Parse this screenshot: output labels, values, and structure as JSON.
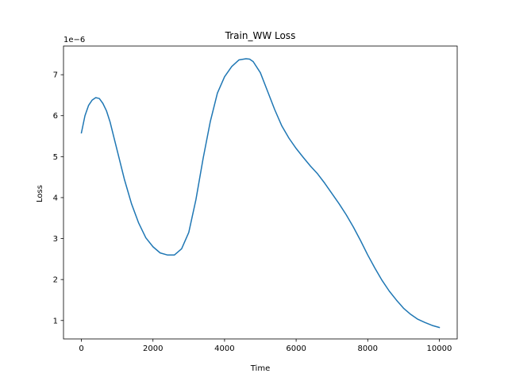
{
  "chart_data": {
    "type": "line",
    "title": "Train_WW Loss",
    "xlabel": "Time",
    "ylabel": "Loss",
    "y_offset_label": "1e−6",
    "xlim": [
      -500,
      10500
    ],
    "ylim": [
      0.55,
      7.7
    ],
    "x_ticks": [
      0,
      2000,
      4000,
      6000,
      8000,
      10000
    ],
    "x_tick_labels": [
      "0",
      "2000",
      "4000",
      "6000",
      "8000",
      "10000"
    ],
    "y_ticks": [
      1,
      2,
      3,
      4,
      5,
      6,
      7
    ],
    "y_tick_labels": [
      "1",
      "2",
      "3",
      "4",
      "5",
      "6",
      "7"
    ],
    "grid": false,
    "series": [
      {
        "color": "#1f77b4",
        "x": [
          0,
          100,
          200,
          300,
          400,
          500,
          600,
          700,
          800,
          900,
          1000,
          1200,
          1400,
          1600,
          1800,
          2000,
          2200,
          2400,
          2600,
          2800,
          3000,
          3200,
          3400,
          3600,
          3800,
          4000,
          4200,
          4400,
          4600,
          4700,
          4800,
          5000,
          5200,
          5400,
          5600,
          5800,
          6000,
          6200,
          6400,
          6600,
          6800,
          7000,
          7200,
          7400,
          7600,
          7800,
          8000,
          8200,
          8400,
          8600,
          8800,
          9000,
          9200,
          9400,
          9600,
          9800,
          10000
        ],
        "y": [
          5.58,
          6.0,
          6.25,
          6.38,
          6.44,
          6.42,
          6.3,
          6.12,
          5.85,
          5.5,
          5.15,
          4.45,
          3.85,
          3.38,
          3.02,
          2.8,
          2.65,
          2.6,
          2.6,
          2.75,
          3.15,
          3.95,
          4.95,
          5.85,
          6.55,
          6.95,
          7.2,
          7.36,
          7.39,
          7.38,
          7.32,
          7.05,
          6.6,
          6.15,
          5.75,
          5.45,
          5.2,
          4.98,
          4.77,
          4.58,
          4.35,
          4.1,
          3.85,
          3.58,
          3.28,
          2.95,
          2.6,
          2.28,
          1.98,
          1.72,
          1.5,
          1.3,
          1.15,
          1.03,
          0.95,
          0.88,
          0.83
        ]
      }
    ]
  }
}
